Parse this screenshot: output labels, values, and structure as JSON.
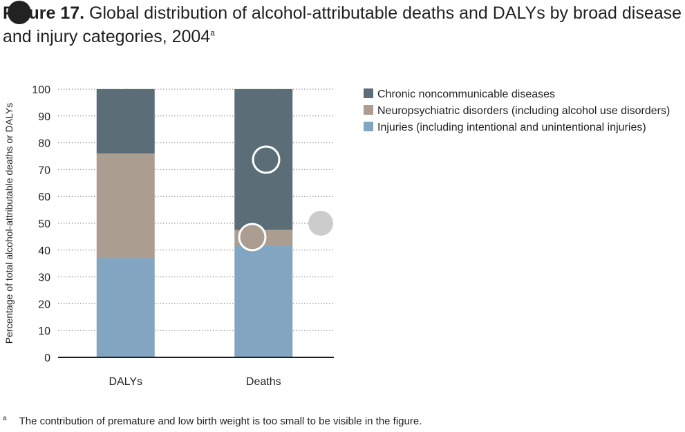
{
  "figure": {
    "label": "Figure 17.",
    "title": "Global distribution of alcohol-attributable deaths and DALYs by broad disease and injury categories, 2004",
    "title_sup": "a"
  },
  "footnote": {
    "marker": "a",
    "text": "The contribution of premature and low birth weight is too small to be visible in the figure."
  },
  "chart_data": {
    "type": "bar",
    "stacked": true,
    "categories": [
      "DALYs",
      "Deaths"
    ],
    "series": [
      {
        "name": "Injuries (including intentional and unintentional injuries)",
        "color": "#82a6c2",
        "values": [
          37,
          41.5
        ]
      },
      {
        "name": "Neuropsychiatric disorders (including alcohol use disorders)",
        "color": "#ab9d90",
        "values": [
          39,
          6
        ]
      },
      {
        "name": "Chronic noncommunicable diseases",
        "color": "#5b6e78",
        "values": [
          24,
          52.5
        ]
      }
    ],
    "legend_order": [
      2,
      1,
      0
    ],
    "ylabel": "Percentage of total alcohol-attributable deaths or DALYs",
    "xlabel": "",
    "ylim": [
      0,
      100
    ],
    "yticks": [
      0,
      10,
      20,
      30,
      40,
      50,
      60,
      70,
      80,
      90,
      100
    ],
    "grid": "dotted horizontal",
    "legend_position": "right"
  },
  "overlay_markers": {
    "fill_colors": [
      "#222222",
      "#5b6e78",
      "#ab9d90",
      "#cccccc"
    ]
  }
}
